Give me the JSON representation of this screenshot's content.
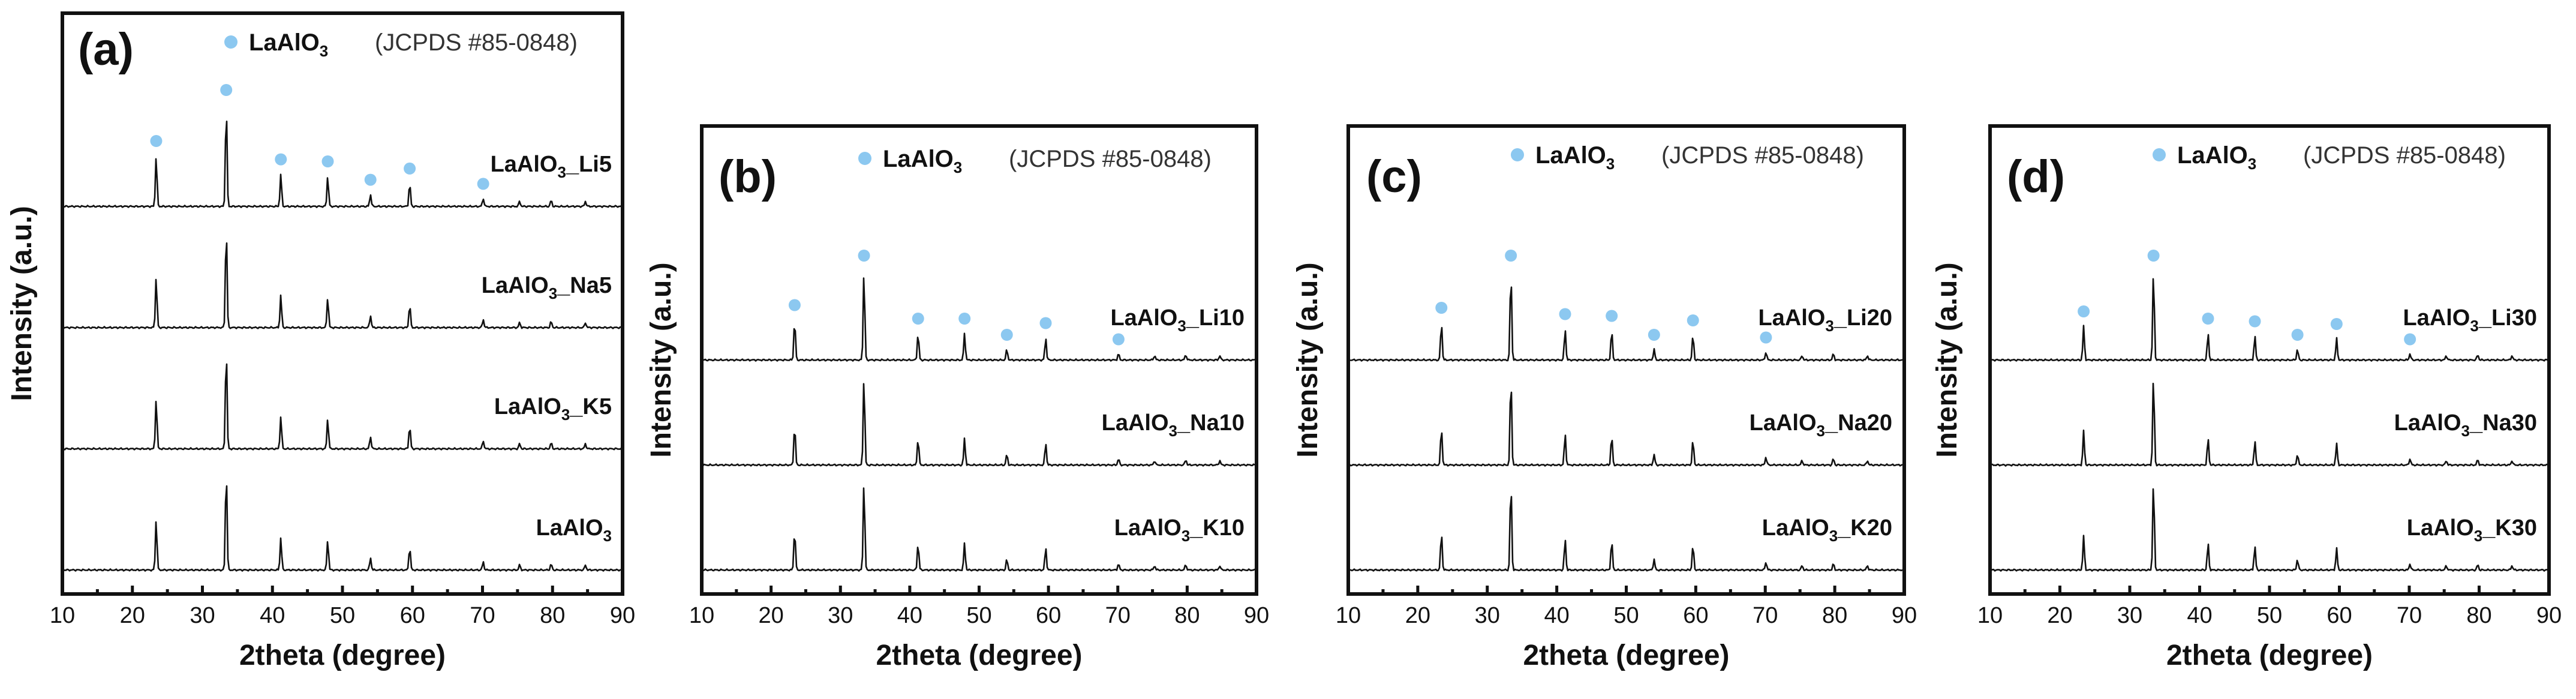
{
  "chart_data": [
    {
      "type": "line",
      "panel_label": "(a)",
      "xlabel": "2theta (degree)",
      "ylabel": "Intensity (a.u.)",
      "xlim": [
        10,
        90
      ],
      "xticks": [
        10,
        20,
        30,
        40,
        50,
        60,
        70,
        80,
        90
      ],
      "yticks_shown": false,
      "legend": {
        "marker": "circle",
        "marker_color": "#8cc8f0",
        "phase": "LaAlO",
        "phase_sub": "3",
        "reference": "(JCPDS #85-0848)"
      },
      "peaks": [
        {
          "x": 23.4,
          "h": 0.5
        },
        {
          "x": 33.4,
          "h": 1.0
        },
        {
          "x": 41.2,
          "h": 0.32
        },
        {
          "x": 47.9,
          "h": 0.3
        },
        {
          "x": 54.0,
          "h": 0.12
        },
        {
          "x": 59.6,
          "h": 0.23
        },
        {
          "x": 70.1,
          "h": 0.08
        },
        {
          "x": 75.3,
          "h": 0.05
        },
        {
          "x": 79.8,
          "h": 0.06
        },
        {
          "x": 84.7,
          "h": 0.05
        }
      ],
      "marked_peaks": [
        23.4,
        33.4,
        41.2,
        47.9,
        54.0,
        59.6,
        70.1
      ],
      "series": [
        {
          "name": "LaAlO3_Li5",
          "label_main": "LaAlO",
          "label_sub": "3",
          "label_suffix": "_Li5",
          "offset": 3
        },
        {
          "name": "LaAlO3_Na5",
          "label_main": "LaAlO",
          "label_sub": "3",
          "label_suffix": "_Na5",
          "offset": 2
        },
        {
          "name": "LaAlO3_K5",
          "label_main": "LaAlO",
          "label_sub": "3",
          "label_suffix": "_K5",
          "offset": 1
        },
        {
          "name": "LaAlO3",
          "label_main": "LaAlO",
          "label_sub": "3",
          "label_suffix": "",
          "offset": 0
        }
      ]
    },
    {
      "type": "line",
      "panel_label": "(b)",
      "xlabel": "2theta (degree)",
      "ylabel": "Intensity (a.u.)",
      "xlim": [
        10,
        90
      ],
      "xticks": [
        10,
        20,
        30,
        40,
        50,
        60,
        70,
        80,
        90
      ],
      "yticks_shown": false,
      "legend": {
        "marker": "circle",
        "marker_color": "#8cc8f0",
        "phase": "LaAlO",
        "phase_sub": "3",
        "reference": "(JCPDS #85-0848)"
      },
      "peaks": [
        {
          "x": 23.4,
          "h": 0.45
        },
        {
          "x": 33.4,
          "h": 1.0
        },
        {
          "x": 41.2,
          "h": 0.3
        },
        {
          "x": 47.9,
          "h": 0.3
        },
        {
          "x": 54.0,
          "h": 0.12
        },
        {
          "x": 59.6,
          "h": 0.25
        },
        {
          "x": 70.1,
          "h": 0.07
        },
        {
          "x": 75.3,
          "h": 0.05
        },
        {
          "x": 79.8,
          "h": 0.06
        },
        {
          "x": 84.7,
          "h": 0.05
        }
      ],
      "marked_peaks": [
        23.4,
        33.4,
        41.2,
        47.9,
        54.0,
        59.6,
        70.1
      ],
      "series": [
        {
          "name": "LaAlO3_Li10",
          "label_main": "LaAlO",
          "label_sub": "3",
          "label_suffix": "_Li10",
          "offset": 2
        },
        {
          "name": "LaAlO3_Na10",
          "label_main": "LaAlO",
          "label_sub": "3",
          "label_suffix": "_Na10",
          "offset": 1
        },
        {
          "name": "LaAlO3_K10",
          "label_main": "LaAlO",
          "label_sub": "3",
          "label_suffix": "_K10",
          "offset": 0
        }
      ]
    },
    {
      "type": "line",
      "panel_label": "(c)",
      "xlabel": "2theta (degree)",
      "ylabel": "Intensity (a.u.)",
      "xlim": [
        10,
        90
      ],
      "xticks": [
        10,
        20,
        30,
        40,
        50,
        60,
        70,
        80,
        90
      ],
      "yticks_shown": false,
      "legend": {
        "marker": "circle",
        "marker_color": "#8cc8f0",
        "phase": "LaAlO",
        "phase_sub": "3",
        "reference": "(JCPDS #85-0848)"
      },
      "peaks": [
        {
          "x": 23.4,
          "h": 0.42
        },
        {
          "x": 33.4,
          "h": 1.0
        },
        {
          "x": 41.2,
          "h": 0.35
        },
        {
          "x": 47.9,
          "h": 0.33
        },
        {
          "x": 54.0,
          "h": 0.12
        },
        {
          "x": 59.6,
          "h": 0.28
        },
        {
          "x": 70.1,
          "h": 0.09
        },
        {
          "x": 75.3,
          "h": 0.05
        },
        {
          "x": 79.8,
          "h": 0.07
        },
        {
          "x": 84.7,
          "h": 0.05
        }
      ],
      "marked_peaks": [
        23.4,
        33.4,
        41.2,
        47.9,
        54.0,
        59.6,
        70.1
      ],
      "series": [
        {
          "name": "LaAlO3_Li20",
          "label_main": "LaAlO",
          "label_sub": "3",
          "label_suffix": "_Li20",
          "offset": 2
        },
        {
          "name": "LaAlO3_Na20",
          "label_main": "LaAlO",
          "label_sub": "3",
          "label_suffix": "_Na20",
          "offset": 1
        },
        {
          "name": "LaAlO3_K20",
          "label_main": "LaAlO",
          "label_sub": "3",
          "label_suffix": "_K20",
          "offset": 0
        }
      ]
    },
    {
      "type": "line",
      "panel_label": "(d)",
      "xlabel": "2theta (degree)",
      "ylabel": "Intensity (a.u.)",
      "xlim": [
        10,
        90
      ],
      "xticks": [
        10,
        20,
        30,
        40,
        50,
        60,
        70,
        80,
        90
      ],
      "yticks_shown": false,
      "legend": {
        "marker": "circle",
        "marker_color": "#8cc8f0",
        "phase": "LaAlO",
        "phase_sub": "3",
        "reference": "(JCPDS #85-0848)"
      },
      "peaks": [
        {
          "x": 23.4,
          "h": 0.38
        },
        {
          "x": 33.4,
          "h": 1.0
        },
        {
          "x": 41.2,
          "h": 0.3
        },
        {
          "x": 47.9,
          "h": 0.27
        },
        {
          "x": 54.0,
          "h": 0.12
        },
        {
          "x": 59.6,
          "h": 0.24
        },
        {
          "x": 70.1,
          "h": 0.07
        },
        {
          "x": 75.3,
          "h": 0.05
        },
        {
          "x": 79.8,
          "h": 0.06
        },
        {
          "x": 84.7,
          "h": 0.05
        }
      ],
      "marked_peaks": [
        23.4,
        33.4,
        41.2,
        47.9,
        54.0,
        59.6,
        70.1
      ],
      "series": [
        {
          "name": "LaAlO3_Li30",
          "label_main": "LaAlO",
          "label_sub": "3",
          "label_suffix": "_Li30",
          "offset": 2
        },
        {
          "name": "LaAlO3_Na30",
          "label_main": "LaAlO",
          "label_sub": "3",
          "label_suffix": "_Na30",
          "offset": 1
        },
        {
          "name": "LaAlO3_K30",
          "label_main": "LaAlO",
          "label_sub": "3",
          "label_suffix": "_K30",
          "offset": 0
        }
      ]
    }
  ]
}
